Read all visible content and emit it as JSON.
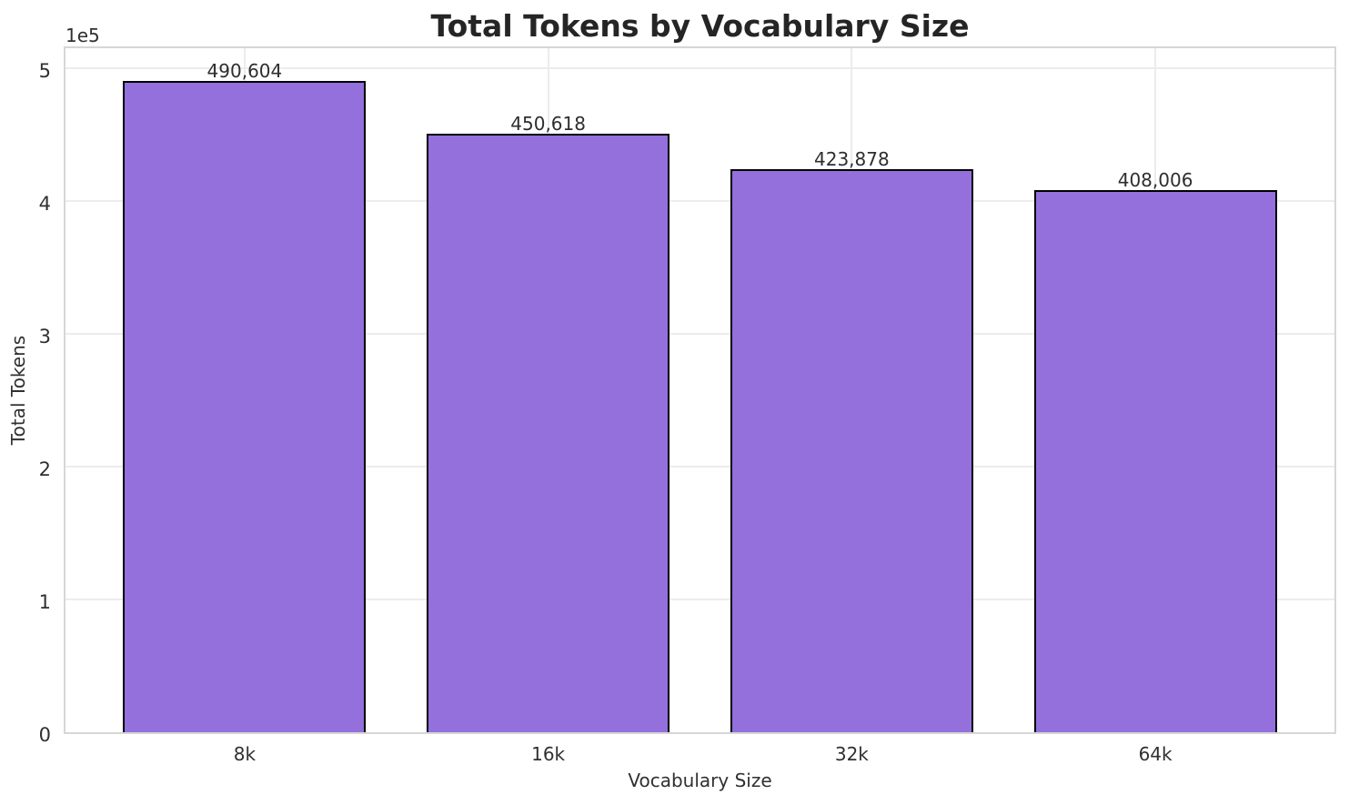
{
  "chart": {
    "title": "Total Tokens by Vocabulary Size",
    "xlabel": "Vocabulary Size",
    "ylabel": "Total Tokens",
    "y_offset_label": "1e5"
  },
  "chart_data": {
    "type": "bar",
    "title": "Total Tokens by Vocabulary Size",
    "xlabel": "Vocabulary Size",
    "ylabel": "Total Tokens",
    "categories": [
      "8k",
      "16k",
      "32k",
      "64k"
    ],
    "values": [
      490604,
      450618,
      423878,
      408006
    ],
    "value_labels": [
      "490,604",
      "450,618",
      "423,878",
      "408,006"
    ],
    "y_ticks": [
      "0",
      "1",
      "2",
      "3",
      "4",
      "5"
    ],
    "y_tick_values": [
      0,
      100000,
      200000,
      300000,
      400000,
      500000
    ],
    "y_offset_label": "1e5",
    "ylim": [
      0,
      515134
    ],
    "grid": true,
    "legend": false,
    "bar_color": "#9370DB",
    "bar_edge_color": "#000000"
  }
}
